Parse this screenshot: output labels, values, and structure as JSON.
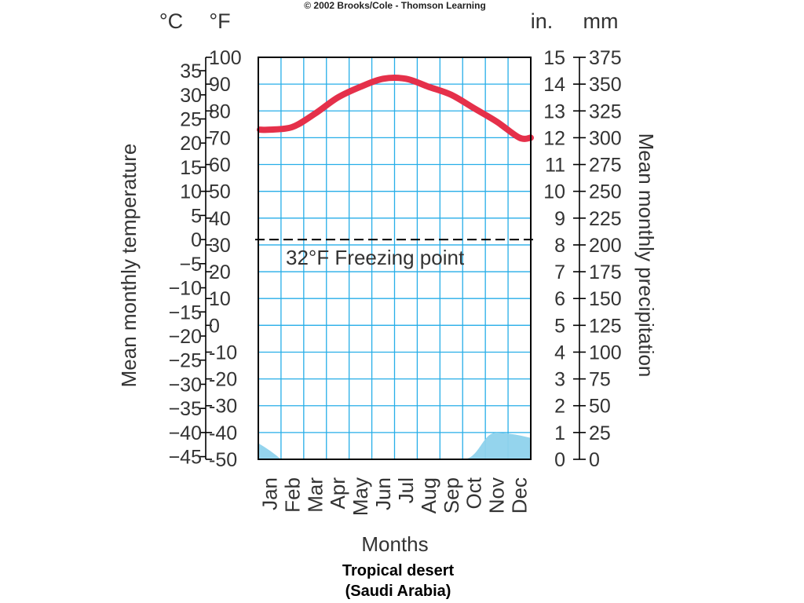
{
  "copyright": "© 2002 Brooks/Cole - Thomson Learning",
  "caption": {
    "line1": "Tropical desert",
    "line2": "(Saudi Arabia)"
  },
  "units": {
    "celsius": "°C",
    "fahrenheit": "°F",
    "inches": "in.",
    "millimeters": "mm"
  },
  "chart_data": {
    "type": "line",
    "xlabel": "Months",
    "ylabel_left": "Mean monthly temperature",
    "ylabel_right": "Mean monthly precipitation",
    "categories": [
      "Jan",
      "Feb",
      "Mar",
      "Apr",
      "May",
      "Jun",
      "Jul",
      "Aug",
      "Sep",
      "Oct",
      "Nov",
      "Dec"
    ],
    "axes": {
      "fahrenheit": {
        "ylim": [
          -50,
          100
        ],
        "ticks": [
          "100",
          "90",
          "80",
          "70",
          "60",
          "50",
          "40",
          "30",
          "20",
          "10",
          "0",
          "-10",
          "-20",
          "-30",
          "-40",
          "-50"
        ]
      },
      "celsius": {
        "ticks": [
          "35",
          "30",
          "25",
          "20",
          "15",
          "10",
          "5",
          "0",
          "−5",
          "−10",
          "−15",
          "−20",
          "−25",
          "−30",
          "−35",
          "−40",
          "−45"
        ]
      },
      "inches": {
        "ylim": [
          0,
          15
        ],
        "ticks": [
          "15",
          "14",
          "13",
          "12",
          "11",
          "10",
          "9",
          "8",
          "7",
          "6",
          "5",
          "4",
          "3",
          "2",
          "1",
          "0"
        ]
      },
      "millimeters": {
        "ticks": [
          "375",
          "350",
          "325",
          "300",
          "275",
          "250",
          "225",
          "200",
          "175",
          "150",
          "125",
          "100",
          "75",
          "50",
          "25",
          "0"
        ]
      }
    },
    "series": [
      {
        "name": "",
        "kind": "temperature_line",
        "unit": "°F",
        "values": [
          73,
          74,
          79,
          85,
          89,
          92,
          92,
          89,
          86,
          81,
          76,
          70
        ],
        "color": "#e5304a"
      },
      {
        "name": "",
        "kind": "precipitation_area",
        "unit": "in.",
        "values": [
          0.6,
          0,
          0,
          0,
          0,
          0,
          0,
          0,
          0,
          0,
          1.0,
          0.8
        ],
        "color": "#8ed2ec"
      }
    ],
    "reference_line": {
      "value": 32,
      "unit": "°F",
      "label": "32°F Freezing point",
      "style": "dashed"
    },
    "grid": true,
    "colors": {
      "grid": "#27aee8",
      "frame": "#000000",
      "text": "#333333"
    }
  }
}
